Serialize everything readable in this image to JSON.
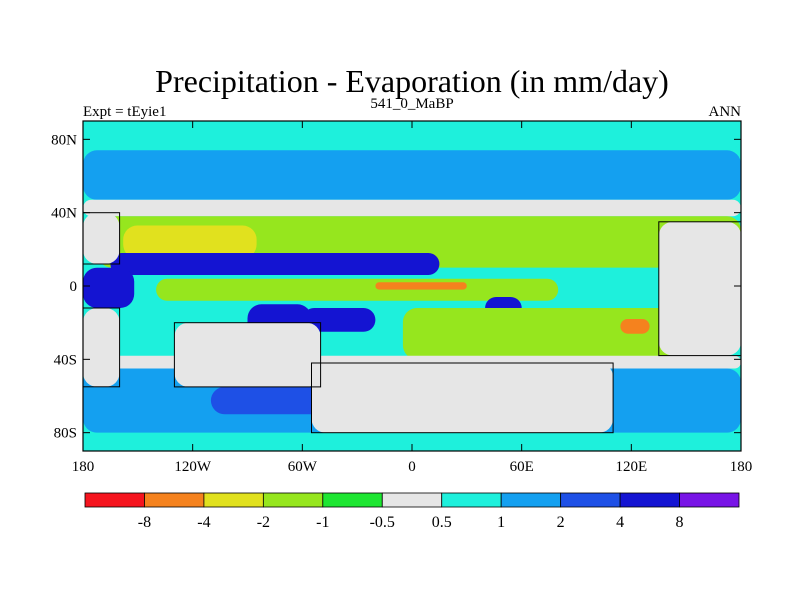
{
  "chart_data": {
    "type": "heatmap",
    "title": "Precipitation - Evaporation (in mm/day)",
    "subtitle_left": "Expt = tEyie1",
    "subtitle_center": "541_0_MaBP",
    "subtitle_right": "ANN",
    "xlim": [
      -180,
      180
    ],
    "ylim": [
      -90,
      90
    ],
    "x_ticks": [
      {
        "value": -180,
        "label": "180"
      },
      {
        "value": -120,
        "label": "120W"
      },
      {
        "value": -60,
        "label": "60W"
      },
      {
        "value": 0,
        "label": "0"
      },
      {
        "value": 60,
        "label": "60E"
      },
      {
        "value": 120,
        "label": "120E"
      },
      {
        "value": 180,
        "label": "180"
      }
    ],
    "y_ticks": [
      {
        "value": 80,
        "label": "80N"
      },
      {
        "value": 40,
        "label": "40N"
      },
      {
        "value": 0,
        "label": "0"
      },
      {
        "value": -40,
        "label": "40S"
      },
      {
        "value": -80,
        "label": "80S"
      }
    ],
    "colorbar": {
      "colors": [
        "#f5141e",
        "#f5821e",
        "#e1e11e",
        "#96e61e",
        "#1ee632",
        "#e6e6e6",
        "#1ef0dc",
        "#14a0f0",
        "#1e50e6",
        "#1414d2",
        "#7814e6"
      ],
      "labels": [
        "-8",
        "-4",
        "-2",
        "-1",
        "-0.5",
        "0.5",
        "1",
        "2",
        "4",
        "8"
      ]
    },
    "fields": [
      {
        "region": "background",
        "level": 6
      },
      {
        "region": "arctic-band",
        "lat": [
          74,
          90
        ],
        "lon": [
          -180,
          180
        ],
        "level": 6
      },
      {
        "region": "north-subpolar-band",
        "lat": [
          47,
          74
        ],
        "lon": [
          -180,
          180
        ],
        "level": 7
      },
      {
        "region": "north-midlatitude-gap",
        "lat": [
          38,
          47
        ],
        "lon": [
          -180,
          180
        ],
        "level": 5
      },
      {
        "region": "north-subtropical-dry-belt",
        "lat": [
          10,
          38
        ],
        "lon": [
          -172,
          180
        ],
        "level": 3
      },
      {
        "region": "north-intense-dry-east",
        "lat": [
          15,
          33
        ],
        "lon": [
          -158,
          -85
        ],
        "level": 2
      },
      {
        "region": "north-pacific-dry-core",
        "lat": [
          22,
          27
        ],
        "lon": [
          139,
          160
        ],
        "level": 1
      },
      {
        "region": "north-pacific-dry-core-2",
        "lat": [
          20,
          30
        ],
        "lon": [
          162,
          172
        ],
        "level": 1
      },
      {
        "region": "itcz-wet-band",
        "lat": [
          6,
          18
        ],
        "lon": [
          -165,
          15
        ],
        "level": 9
      },
      {
        "region": "equatorial-west-wet",
        "lat": [
          -12,
          10
        ],
        "lon": [
          -180,
          -152
        ],
        "level": 9
      },
      {
        "region": "equatorial-dry-band",
        "lat": [
          -8,
          4
        ],
        "lon": [
          -140,
          80
        ],
        "level": 3
      },
      {
        "region": "equatorial-dry-core",
        "lat": [
          -2,
          2
        ],
        "lon": [
          -20,
          30
        ],
        "level": 1
      },
      {
        "region": "southern-wet-patch",
        "lat": [
          -28,
          -10
        ],
        "lon": [
          -90,
          -55
        ],
        "level": 9
      },
      {
        "region": "south-atlantic-wet",
        "lat": [
          -25,
          -12
        ],
        "lon": [
          -60,
          -20
        ],
        "level": 9
      },
      {
        "region": "indian-ocean-wet",
        "lat": [
          -18,
          -6
        ],
        "lon": [
          40,
          60
        ],
        "level": 9
      },
      {
        "region": "south-subtropical-dry-belt",
        "lat": [
          -40,
          -12
        ],
        "lon": [
          -5,
          160
        ],
        "level": 3
      },
      {
        "region": "south-subtropical-dry-core",
        "lat": [
          -26,
          -18
        ],
        "lon": [
          114,
          130
        ],
        "level": 1
      },
      {
        "region": "south-gap",
        "lat": [
          -45,
          -38
        ],
        "lon": [
          -180,
          180
        ],
        "level": 5
      },
      {
        "region": "south-wet-band",
        "lat": [
          -80,
          -45
        ],
        "lon": [
          -180,
          180
        ],
        "level": 7
      },
      {
        "region": "south-strong-wet",
        "lat": [
          -70,
          -55
        ],
        "lon": [
          -110,
          -40
        ],
        "level": 8
      },
      {
        "region": "south-strong-wet-2",
        "lat": [
          -68,
          -55
        ],
        "lon": [
          -10,
          80
        ],
        "level": 8
      },
      {
        "region": "antarctic-band",
        "lat": [
          -90,
          -80
        ],
        "lon": [
          -180,
          180
        ],
        "level": 6
      },
      {
        "region": "continent-west-north",
        "lat": [
          12,
          40
        ],
        "lon": [
          -180,
          -160
        ],
        "level": 5
      },
      {
        "region": "continent-west-south",
        "lat": [
          -55,
          -12
        ],
        "lon": [
          -180,
          -160
        ],
        "level": 5
      },
      {
        "region": "continent-south-america",
        "lat": [
          -55,
          -20
        ],
        "lon": [
          -130,
          -50
        ],
        "level": 5
      },
      {
        "region": "continent-southern-mid",
        "lat": [
          -80,
          -42
        ],
        "lon": [
          -55,
          110
        ],
        "level": 5
      },
      {
        "region": "continent-east-asia",
        "lat": [
          -38,
          35
        ],
        "lon": [
          135,
          180
        ],
        "level": 5
      }
    ]
  }
}
